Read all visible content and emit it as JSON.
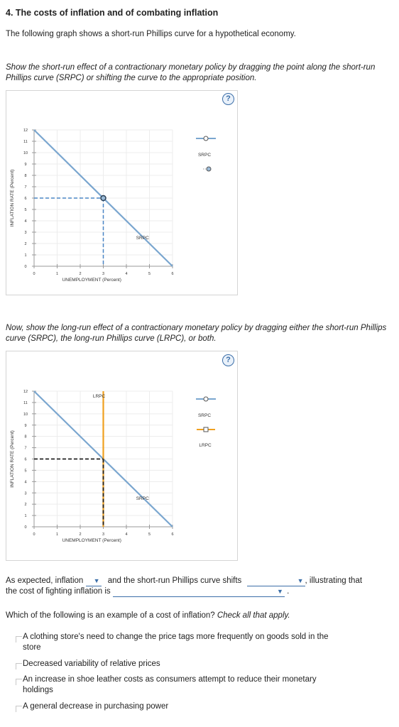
{
  "heading": "4. The costs of inflation and of combating inflation",
  "intro": "The following graph shows a short-run Phillips curve for a hypothetical economy.",
  "instruction1": "Show the short-run effect of a contractionary monetary policy by dragging the point along the short-run Phillips curve (SRPC) or shifting the curve to the appropriate position.",
  "instruction2": "Now, show the long-run effect of a contractionary monetary policy by dragging either the short-run Phillips curve (SRPC), the long-run Phillips curve (LRPC), or both.",
  "help": "?",
  "graph1": {
    "y_axis_label": "INFLATION RATE (Percent)",
    "x_axis_label": "UNEMPLOYMENT (Percent)",
    "y_ticks": [
      "0",
      "1",
      "2",
      "3",
      "4",
      "5",
      "6",
      "7",
      "8",
      "9",
      "10",
      "11",
      "12"
    ],
    "x_ticks": [
      "0",
      "1",
      "2",
      "3",
      "4",
      "5",
      "6"
    ],
    "curve_label": "SRPC",
    "point": {
      "unemployment": 3,
      "inflation": 6
    },
    "legend": [
      {
        "label": "SRPC",
        "icon": "circle-handle-icon"
      }
    ]
  },
  "graph2": {
    "y_axis_label": "INFLATION RATE (Percent)",
    "x_axis_label": "UNEMPLOYMENT (Percent)",
    "y_ticks": [
      "0",
      "1",
      "2",
      "3",
      "4",
      "5",
      "6",
      "7",
      "8",
      "9",
      "10",
      "11",
      "12"
    ],
    "x_ticks": [
      "0",
      "1",
      "2",
      "3",
      "4",
      "5",
      "6"
    ],
    "srpc_label": "SRPC",
    "lrpc_label": "LRPC",
    "intersection": {
      "unemployment": 3,
      "inflation": 6
    },
    "lrpc_unemployment": 3,
    "legend": [
      {
        "label": "SRPC",
        "icon": "circle-handle-icon"
      },
      {
        "label": "LRPC",
        "icon": "square-handle-icon"
      }
    ]
  },
  "sentence": {
    "part1": "As expected, inflation",
    "part2": "and the short-run Phillips curve shifts",
    "part3": ", illustrating that",
    "part4": "the cost of fighting inflation is",
    "part5": "."
  },
  "question2": {
    "prefix": "Which of the following is an example of a cost of inflation?",
    "suffix": "Check all that apply.",
    "options": [
      "A clothing store's need to change the price tags more frequently on goods sold in the",
      "store",
      "Decreased variability of relative prices",
      "An increase in shoe leather costs as consumers attempt to reduce their monetary",
      "holdings",
      "A general decrease in purchasing power"
    ]
  },
  "colors": {
    "srpc": "#7aa6cf",
    "lrpc": "#f0a020",
    "dash1": "#4a86c6",
    "dash2": "#222222",
    "accent": "#3b6ea8"
  }
}
